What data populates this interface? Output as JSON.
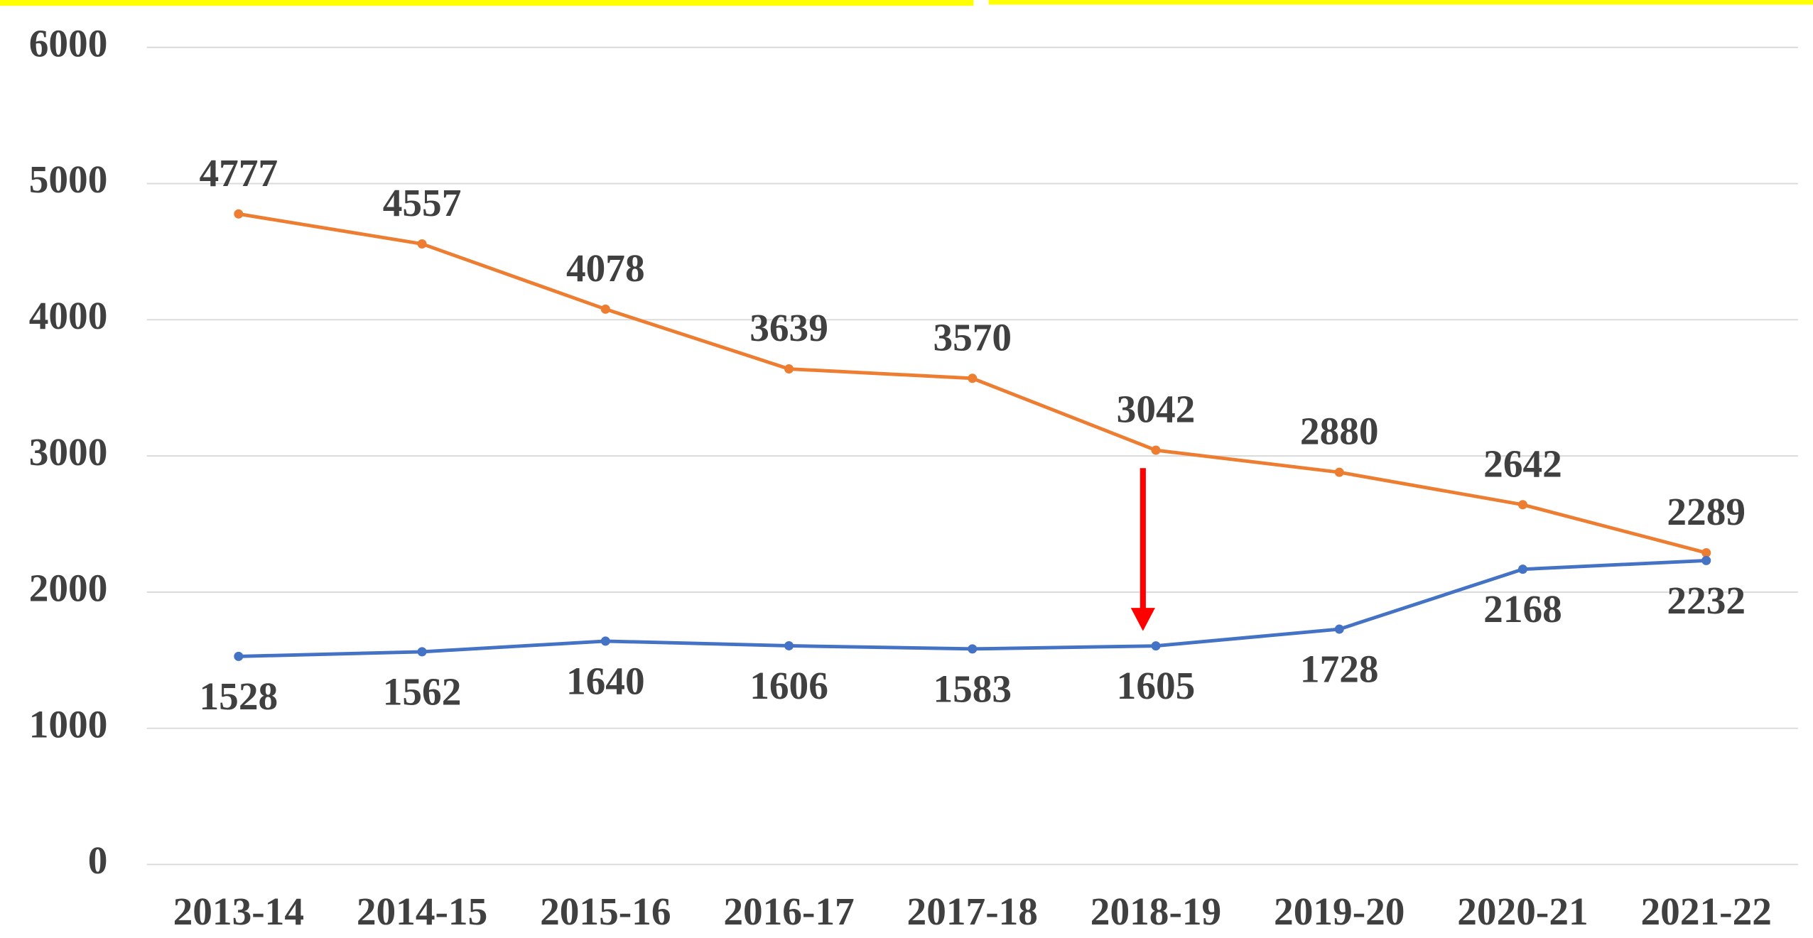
{
  "chart_data": {
    "type": "line",
    "categories": [
      "2013-14",
      "2014-15",
      "2015-16",
      "2016-17",
      "2017-18",
      "2018-19",
      "2019-20",
      "2020-21",
      "2021-22"
    ],
    "series": [
      {
        "color": "#ed7d31",
        "values": [
          4777,
          4557,
          4078,
          3639,
          3570,
          3042,
          2880,
          2642,
          2289
        ]
      },
      {
        "color": "#4472c4",
        "values": [
          1528,
          1562,
          1640,
          1606,
          1583,
          1605,
          1728,
          2168,
          2232
        ]
      }
    ],
    "ylim": [
      0,
      6000
    ],
    "yticks": [
      0,
      1000,
      2000,
      3000,
      4000,
      5000,
      6000
    ],
    "grid": true
  }
}
